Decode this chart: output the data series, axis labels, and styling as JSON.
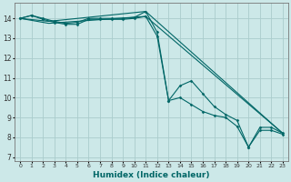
{
  "xlabel": "Humidex (Indice chaleur)",
  "bg_color": "#cce8e8",
  "grid_color": "#aacccc",
  "line_color": "#006666",
  "xlim": [
    -0.5,
    23.5
  ],
  "ylim": [
    6.8,
    14.8
  ],
  "yticks": [
    7,
    8,
    9,
    10,
    11,
    12,
    13,
    14
  ],
  "xticks": [
    0,
    1,
    2,
    3,
    4,
    5,
    6,
    7,
    8,
    9,
    10,
    11,
    12,
    13,
    14,
    15,
    16,
    17,
    18,
    19,
    20,
    21,
    22,
    23
  ],
  "lines_marked": [
    {
      "x": [
        0,
        1,
        2,
        3,
        4,
        5,
        6,
        7,
        8,
        9,
        10,
        11,
        12,
        13,
        14,
        15,
        16,
        17,
        18,
        19,
        20,
        21,
        22,
        23
      ],
      "y": [
        14.0,
        14.15,
        14.0,
        13.85,
        13.75,
        13.8,
        14.0,
        14.0,
        14.0,
        14.0,
        14.05,
        14.35,
        13.3,
        9.85,
        10.6,
        10.85,
        10.2,
        9.55,
        9.15,
        8.85,
        7.5,
        8.5,
        8.5,
        8.2
      ]
    },
    {
      "x": [
        0,
        1,
        2,
        3,
        4,
        5,
        6,
        7,
        8,
        9,
        10,
        11,
        12,
        13,
        14,
        15,
        16,
        17,
        18,
        19,
        20,
        21,
        22,
        23
      ],
      "y": [
        14.0,
        14.15,
        13.95,
        13.8,
        13.7,
        13.7,
        13.95,
        13.95,
        13.95,
        13.95,
        14.0,
        14.1,
        13.1,
        9.85,
        10.0,
        9.65,
        9.3,
        9.1,
        9.0,
        8.55,
        7.5,
        8.35,
        8.35,
        8.15
      ]
    }
  ],
  "lines_straight": [
    {
      "x": [
        0,
        2.5,
        11,
        23
      ],
      "y": [
        14.0,
        13.85,
        14.35,
        8.2
      ]
    },
    {
      "x": [
        0,
        2.5,
        11,
        23
      ],
      "y": [
        14.0,
        13.75,
        14.1,
        8.2
      ]
    }
  ]
}
